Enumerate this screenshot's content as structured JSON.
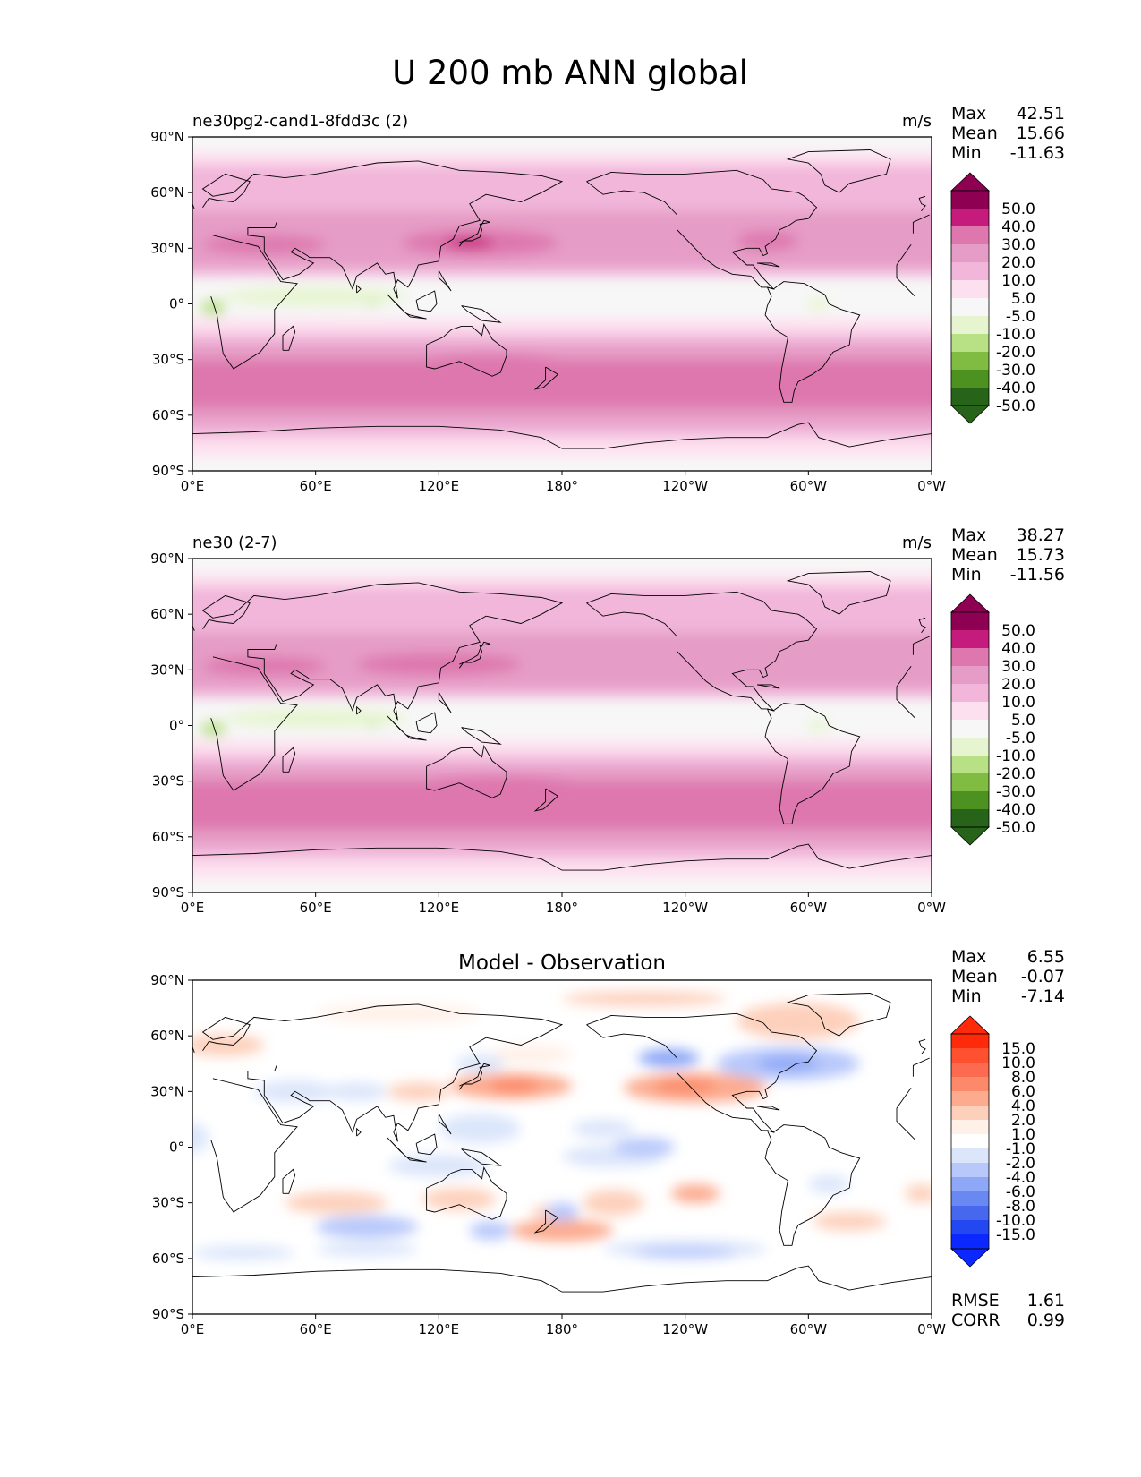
{
  "figure": {
    "title": "U 200 mb ANN global"
  },
  "axes": {
    "lat_ticks": [
      "90°N",
      "60°N",
      "30°N",
      "0°",
      "30°S",
      "60°S",
      "90°S"
    ],
    "lon_ticks": [
      "0°E",
      "60°E",
      "120°E",
      "180°",
      "120°W",
      "60°W",
      "0°W"
    ]
  },
  "colorscales": {
    "main": {
      "labels": [
        "50.0",
        "40.0",
        "30.0",
        "20.0",
        "10.0",
        "5.0",
        "-5.0",
        "-10.0",
        "-20.0",
        "-30.0",
        "-40.0",
        "-50.0"
      ],
      "colors": [
        "#8e0152",
        "#c51b7d",
        "#de77ae",
        "#e59cc6",
        "#f1b6da",
        "#fde0ef",
        "#f7f7f7",
        "#e6f5d0",
        "#b8e186",
        "#7fbc41",
        "#4d9221",
        "#276419"
      ],
      "top_color": "#8e0152",
      "bottom_color": "#276419"
    },
    "diff": {
      "labels": [
        "15.0",
        "10.0",
        "8.0",
        "6.0",
        "4.0",
        "2.0",
        "1.0",
        "-1.0",
        "-2.0",
        "-4.0",
        "-6.0",
        "-8.0",
        "-10.0",
        "-15.0"
      ],
      "colors": [
        "#ff2a0a",
        "#ff5030",
        "#fc6a50",
        "#fc8a6a",
        "#fcab8f",
        "#fdd0bc",
        "#fff0e8",
        "#ffffff",
        "#dce6fb",
        "#b8c8fb",
        "#8ea8f7",
        "#6a88f2",
        "#4768ee",
        "#2347f0",
        "#0a28ff"
      ],
      "top_color": "#ff2a0a",
      "bottom_color": "#0a28ff"
    }
  },
  "chart_data": [
    {
      "type": "heatmap",
      "title": "ne30pg2-cand1-8fdd3c (2)",
      "units": "m/s",
      "stats": {
        "max_label": "Max",
        "max": "42.51",
        "mean_label": "Mean",
        "mean": "15.66",
        "min_label": "Min",
        "min": "-11.63"
      },
      "xlim": [
        0,
        360
      ],
      "ylim": [
        -90,
        90
      ],
      "colorscale": "main"
    },
    {
      "type": "heatmap",
      "title": "ne30 (2-7)",
      "units": "m/s",
      "stats": {
        "max_label": "Max",
        "max": "38.27",
        "mean_label": "Mean",
        "mean": "15.73",
        "min_label": "Min",
        "min": "-11.56"
      },
      "xlim": [
        0,
        360
      ],
      "ylim": [
        -90,
        90
      ],
      "colorscale": "main"
    },
    {
      "type": "heatmap",
      "title": "Model - Observation",
      "units": "",
      "stats": {
        "max_label": "Max",
        "max": "6.55",
        "mean_label": "Mean",
        "mean": "-0.07",
        "min_label": "Min",
        "min": "-7.14"
      },
      "metrics": {
        "rmse_label": "RMSE",
        "rmse": "1.61",
        "corr_label": "CORR",
        "corr": "0.99"
      },
      "xlim": [
        0,
        360
      ],
      "ylim": [
        -90,
        90
      ],
      "colorscale": "diff"
    }
  ]
}
